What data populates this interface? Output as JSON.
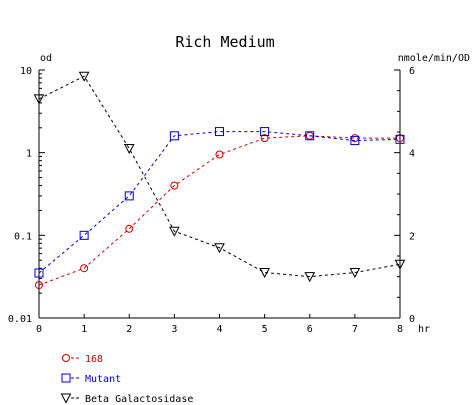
{
  "chart_data": {
    "type": "line",
    "title": "Rich Medium",
    "y_left_label": "od",
    "y_right_label": "nmole/min/OD",
    "x_unit_label": "hr",
    "x": [
      0,
      1,
      2,
      3,
      4,
      5,
      6,
      7,
      8
    ],
    "xlim": [
      0,
      8
    ],
    "y_left_scale": "log",
    "y_left_lim": [
      0.01,
      10
    ],
    "y_left_ticks": [
      "0.01",
      "0.1",
      "1",
      "10"
    ],
    "y_right_scale": "linear",
    "y_right_lim": [
      0,
      6
    ],
    "y_right_ticks": [
      "0",
      "2",
      "4",
      "6"
    ],
    "legend_position": "bottom-left",
    "grid": false,
    "series": [
      {
        "name": "168",
        "axis": "left",
        "marker": "circle",
        "color": "#cc0000",
        "values": [
          0.025,
          0.04,
          0.12,
          0.4,
          0.95,
          1.5,
          1.6,
          1.5,
          1.5
        ]
      },
      {
        "name": "Mutant",
        "axis": "left",
        "marker": "square",
        "color": "#0000cc",
        "values": [
          0.035,
          0.1,
          0.3,
          1.6,
          1.8,
          1.8,
          1.6,
          1.4,
          1.45
        ]
      },
      {
        "name": "Beta Galactosidase",
        "axis": "right",
        "marker": "triangle-down",
        "color": "#000000",
        "values": [
          5.3,
          5.85,
          4.1,
          2.1,
          1.7,
          1.1,
          1.0,
          1.1,
          1.3
        ]
      }
    ]
  }
}
